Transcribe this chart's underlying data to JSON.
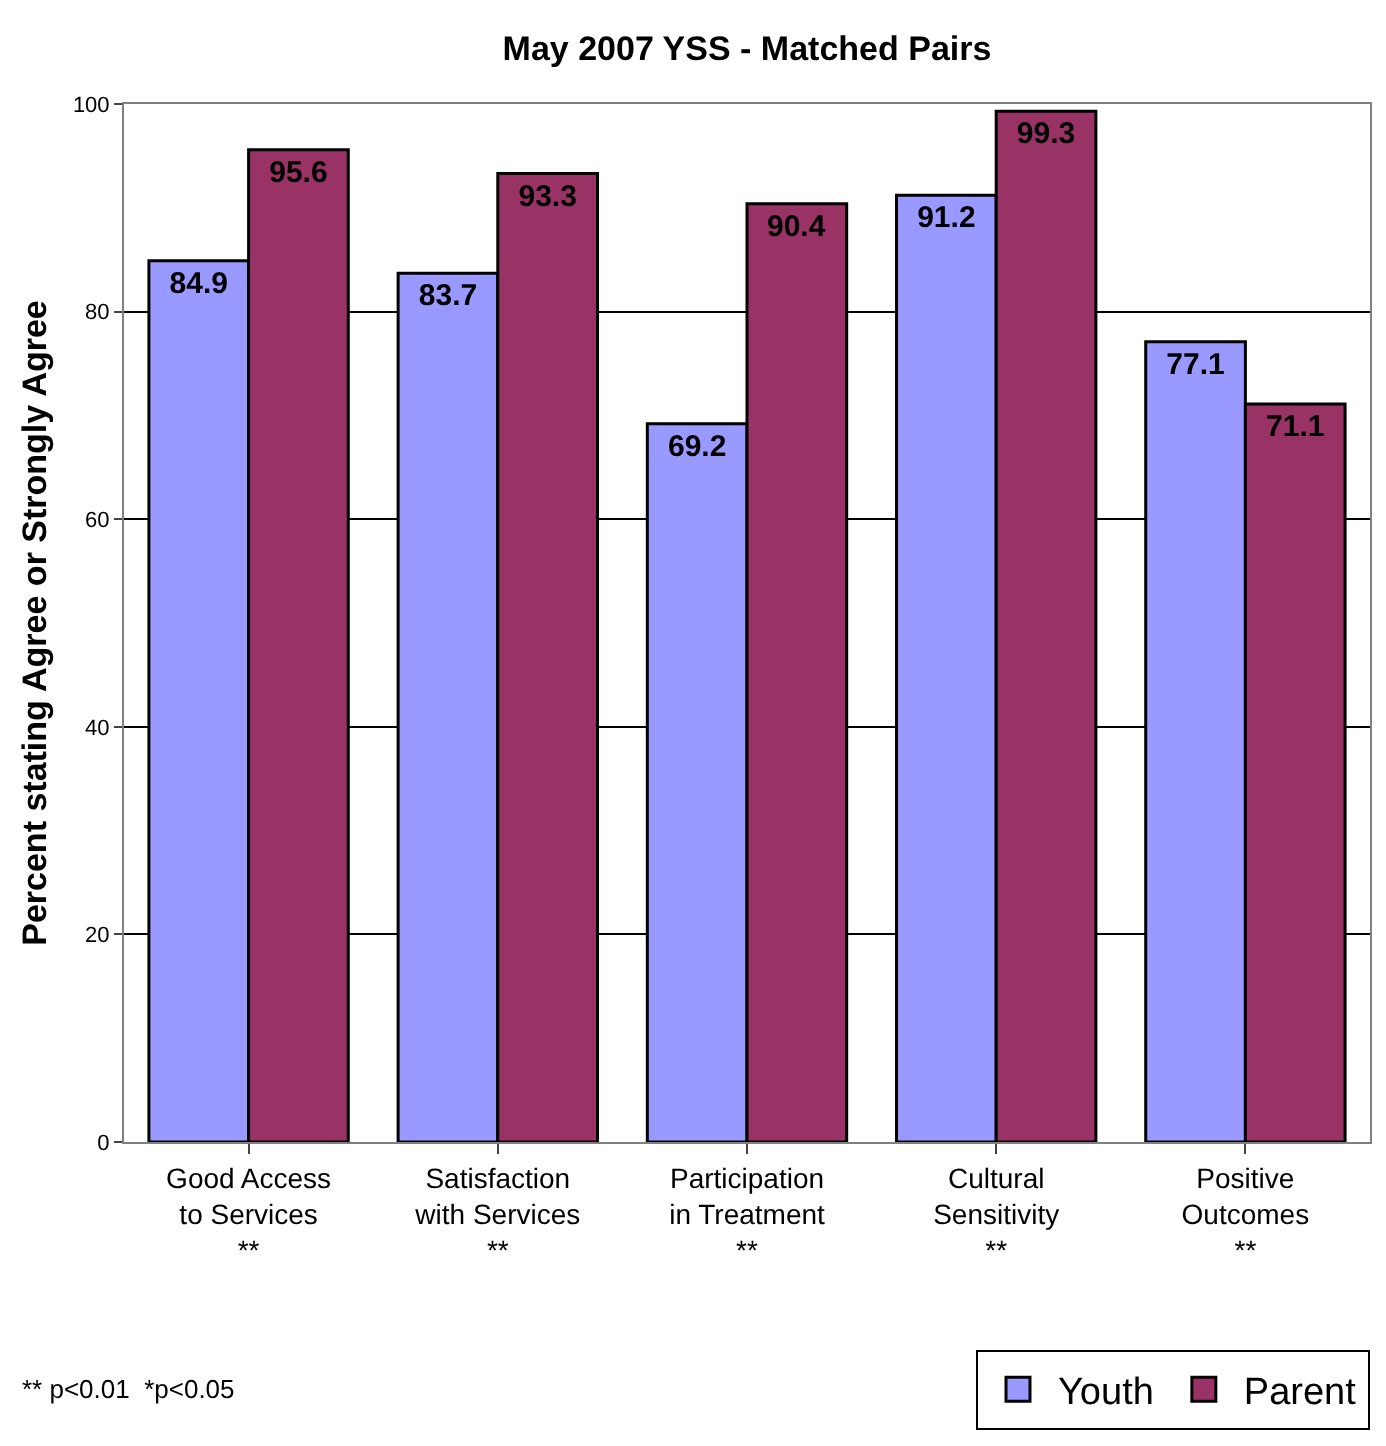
{
  "chart_data": {
    "type": "bar",
    "title": "May 2007 YSS - Matched Pairs",
    "ylabel": "Percent stating Agree or Strongly Agree",
    "categories": [
      "Good Access\nto Services\n**",
      "Satisfaction\nwith Services\n**",
      "Participation\nin Treatment\n**",
      "Cultural\nSensitivity\n**",
      "Positive\nOutcomes\n**"
    ],
    "series": [
      {
        "name": "Youth",
        "color": "#9999ff",
        "values": [
          84.9,
          83.7,
          69.2,
          91.2,
          77.1
        ]
      },
      {
        "name": "Parent",
        "color": "#993366",
        "values": [
          95.6,
          93.3,
          90.4,
          99.3,
          71.1
        ]
      }
    ],
    "ylim": [
      0,
      100
    ],
    "yticks": [
      0,
      20,
      40,
      60,
      80,
      100
    ],
    "grid": "y",
    "legend": "bottom right",
    "data_labels": true,
    "annotations": [
      "** p<0.01  *p<0.05"
    ]
  }
}
